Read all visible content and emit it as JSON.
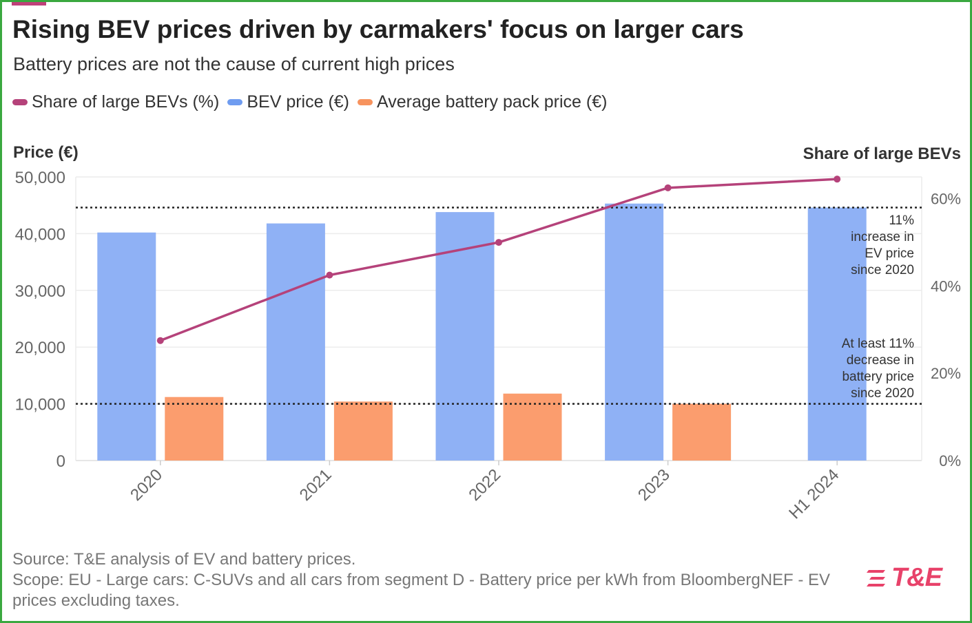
{
  "header": {
    "title": "Rising BEV prices driven by carmakers' focus on larger cars",
    "subtitle": "Battery prices are not the cause of current high prices"
  },
  "legend": [
    {
      "label": "Share of large BEVs (%)",
      "color": "#b5427a"
    },
    {
      "label": "BEV price (€)",
      "color": "#6f9cf0"
    },
    {
      "label": "Average battery pack price (€)",
      "color": "#f7935e"
    }
  ],
  "chart_data": {
    "type": "bar+line",
    "categories": [
      "2020",
      "2021",
      "2022",
      "2023",
      "H1 2024"
    ],
    "series": [
      {
        "name": "BEV price (€)",
        "type": "bar",
        "axis": "left",
        "color": "#8fb1f5",
        "values": [
          40200,
          41800,
          43800,
          45300,
          44600
        ]
      },
      {
        "name": "Average battery pack price (€)",
        "type": "bar",
        "axis": "left",
        "color": "#fb9d6e",
        "values": [
          11200,
          10400,
          11800,
          10000,
          null
        ]
      },
      {
        "name": "Share of large BEVs (%)",
        "type": "line",
        "axis": "right",
        "color": "#b5427a",
        "values": [
          27.5,
          42.5,
          50,
          62.5,
          64.5
        ]
      }
    ],
    "left_axis": {
      "label": "Price (€)",
      "min": 0,
      "max": 50000,
      "ticks": [
        0,
        10000,
        20000,
        30000,
        40000,
        50000
      ],
      "tick_labels": [
        "0",
        "10,000",
        "20,000",
        "30,000",
        "40,000",
        "50,000"
      ]
    },
    "right_axis": {
      "label": "Share of large BEVs",
      "min": 0,
      "max": 65,
      "ticks": [
        0,
        20,
        40,
        60
      ],
      "tick_labels": [
        "0%",
        "20%",
        "40%",
        "60%"
      ]
    },
    "reference_lines": [
      {
        "axis": "left",
        "value": 44600,
        "label_lines": [
          "11%",
          "increase in",
          "EV price",
          "since 2020"
        ]
      },
      {
        "axis": "left",
        "value": 10000,
        "label_lines": [
          "At least 11%",
          "decrease in",
          "battery price",
          "since 2020"
        ]
      }
    ],
    "grid": true
  },
  "footer": {
    "source": "Source: T&E analysis of EV and battery prices.",
    "scope": "Scope: EU - Large cars: C-SUVs and all cars from segment D - Battery price per kWh from BloombergNEF - EV prices excluding taxes."
  },
  "brand": {
    "logo_text": "T&E",
    "color": "#e8426a",
    "accent": "#c0407a"
  }
}
